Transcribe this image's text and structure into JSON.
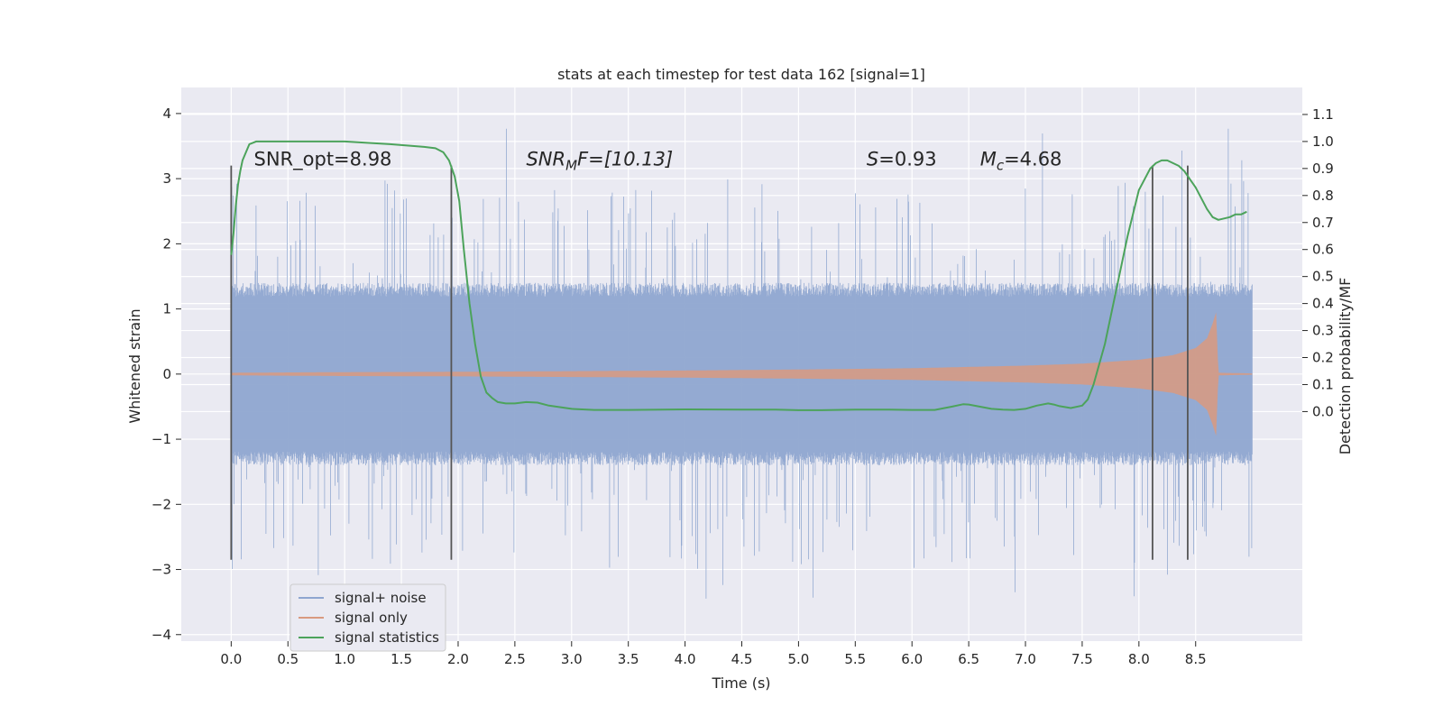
{
  "chart_data": {
    "type": "line",
    "title": "stats at each timestep for test data 162 [signal=1]",
    "xlabel": "Time (s)",
    "ylabel": "Whitened strain",
    "ylabel_right": "Detection probability/MF",
    "xlim": [
      -0.44,
      9.44
    ],
    "ylim": [
      -4.1,
      4.4
    ],
    "ylim_right": [
      -0.85,
      1.2
    ],
    "x_ticks": [
      0.0,
      0.5,
      1.0,
      1.5,
      2.0,
      2.5,
      3.0,
      3.5,
      4.0,
      4.5,
      5.0,
      5.5,
      6.0,
      6.5,
      7.0,
      7.5,
      8.0,
      8.5
    ],
    "x_tick_labels": [
      "0.0",
      "0.5",
      "1.0",
      "1.5",
      "2.0",
      "2.5",
      "3.0",
      "3.5",
      "4.0",
      "4.5",
      "5.0",
      "5.5",
      "6.0",
      "6.5",
      "7.0",
      "7.5",
      "8.0",
      "8.5"
    ],
    "y_ticks": [
      4,
      3,
      2,
      1,
      0,
      -1,
      -2,
      -3,
      -4
    ],
    "y_tick_labels": [
      "4",
      "3",
      "2",
      "1",
      "0",
      "−1",
      "−2",
      "−3",
      "−4"
    ],
    "y_ticks_right": [
      1.1,
      1.0,
      0.9,
      0.8,
      0.7,
      0.6,
      0.5,
      0.4,
      0.3,
      0.2,
      0.1,
      0.0
    ],
    "y_tick_labels_right": [
      "1.1",
      "1.0",
      "0.9",
      "0.8",
      "0.7",
      "0.6",
      "0.5",
      "0.4",
      "0.3",
      "0.2",
      "0.1",
      "0.0"
    ],
    "grid": true,
    "legend_position": "lower-left",
    "annotations": [
      {
        "text": "SNR_opt=8.98",
        "x": 0.2,
        "y": 3.2
      },
      {
        "text": "SNR",
        "sub": "M",
        "tail": "F=[10.13]",
        "italic": true,
        "x": 2.6,
        "y": 3.2
      },
      {
        "text": "S",
        "tail": "=0.93",
        "italic": true,
        "x": 5.6,
        "y": 3.2
      },
      {
        "text": "M",
        "sub": "c",
        "tail": "=4.68",
        "italic": true,
        "x": 6.6,
        "y": 3.2
      }
    ],
    "vertical_lines": {
      "x": [
        0.0,
        1.94,
        8.12,
        8.43
      ],
      "y_range": [
        -2.85,
        3.2
      ],
      "color": "#555555"
    },
    "series": [
      {
        "name": "signal+ noise",
        "color": "#8fa6d0",
        "kind": "noisy-strain",
        "x_range": [
          0.0,
          9.0
        ],
        "core_amplitude": 1.4,
        "spike_range": [
          -3.7,
          4.0
        ]
      },
      {
        "name": "signal only",
        "color": "#d99a80",
        "kind": "chirp-envelope",
        "x": [
          0.0,
          1.0,
          2.0,
          3.0,
          4.0,
          5.0,
          6.0,
          7.0,
          7.5,
          8.0,
          8.3,
          8.5,
          8.6,
          8.65,
          8.68,
          8.7,
          9.0
        ],
        "envelope": [
          0.02,
          0.03,
          0.035,
          0.045,
          0.055,
          0.07,
          0.09,
          0.13,
          0.16,
          0.22,
          0.29,
          0.4,
          0.55,
          0.78,
          0.95,
          0.02,
          0.01
        ]
      },
      {
        "name": "signal statistics",
        "color": "#4ca35b",
        "axis": "right",
        "x": [
          0.0,
          0.02,
          0.04,
          0.06,
          0.08,
          0.1,
          0.13,
          0.16,
          0.22,
          0.3,
          0.5,
          0.8,
          1.0,
          1.2,
          1.4,
          1.55,
          1.7,
          1.8,
          1.87,
          1.92,
          1.97,
          2.01,
          2.05,
          2.1,
          2.15,
          2.2,
          2.25,
          2.3,
          2.35,
          2.42,
          2.5,
          2.6,
          2.7,
          2.8,
          3.0,
          3.2,
          3.5,
          4.0,
          4.5,
          4.8,
          5.0,
          5.2,
          5.5,
          5.8,
          6.0,
          6.2,
          6.35,
          6.45,
          6.5,
          6.6,
          6.7,
          6.8,
          6.9,
          7.0,
          7.1,
          7.2,
          7.25,
          7.3,
          7.4,
          7.5,
          7.55,
          7.6,
          7.7,
          7.8,
          7.9,
          8.0,
          8.1,
          8.15,
          8.2,
          8.25,
          8.3,
          8.35,
          8.4,
          8.45,
          8.5,
          8.55,
          8.6,
          8.65,
          8.7,
          8.8,
          8.85,
          8.9,
          8.95
        ],
        "values": [
          0.58,
          0.66,
          0.76,
          0.84,
          0.89,
          0.93,
          0.96,
          0.99,
          1.0,
          1.0,
          1.0,
          1.0,
          1.0,
          0.995,
          0.99,
          0.985,
          0.98,
          0.975,
          0.96,
          0.93,
          0.87,
          0.78,
          0.6,
          0.4,
          0.25,
          0.13,
          0.07,
          0.05,
          0.035,
          0.03,
          0.03,
          0.035,
          0.033,
          0.022,
          0.01,
          0.006,
          0.006,
          0.008,
          0.007,
          0.007,
          0.005,
          0.005,
          0.007,
          0.007,
          0.006,
          0.006,
          0.018,
          0.027,
          0.026,
          0.018,
          0.01,
          0.007,
          0.006,
          0.01,
          0.022,
          0.03,
          0.026,
          0.02,
          0.013,
          0.022,
          0.045,
          0.1,
          0.25,
          0.45,
          0.65,
          0.82,
          0.9,
          0.92,
          0.93,
          0.93,
          0.92,
          0.91,
          0.89,
          0.86,
          0.83,
          0.79,
          0.75,
          0.72,
          0.71,
          0.72,
          0.73,
          0.73,
          0.74
        ]
      }
    ]
  }
}
